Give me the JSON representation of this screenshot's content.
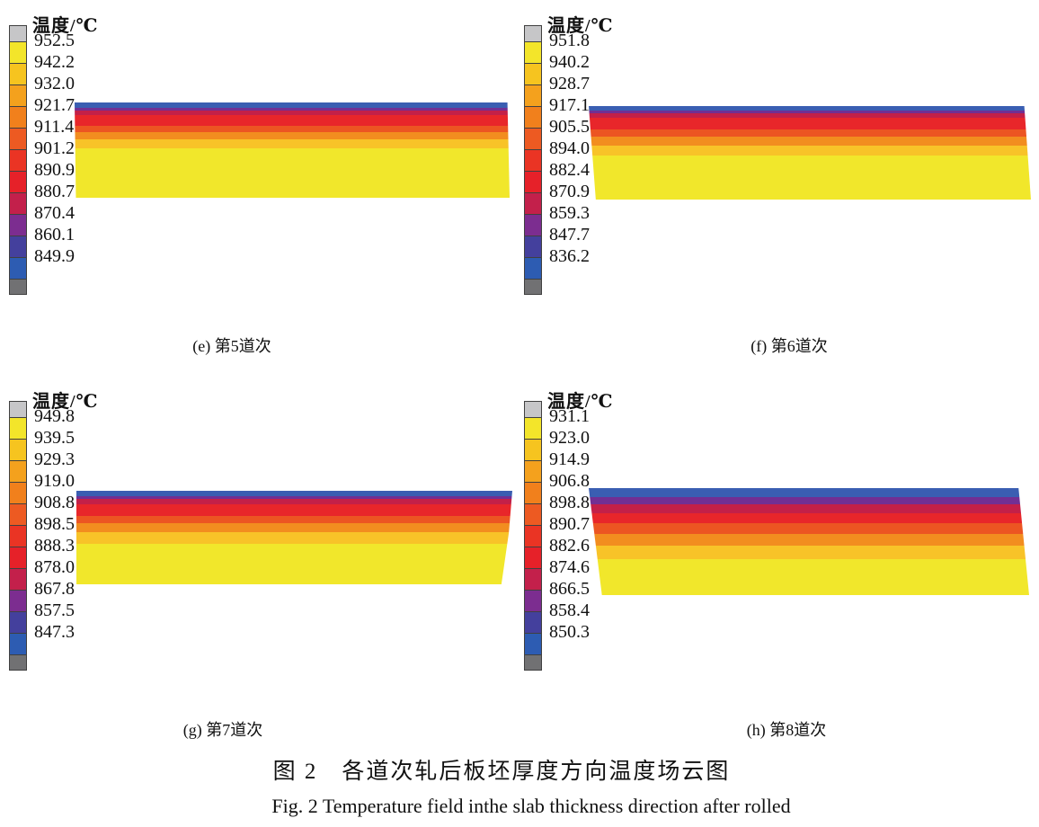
{
  "figure": {
    "caption_zh": "图 2　各道次轧后板坯厚度方向温度场云图",
    "caption_en": "Fig. 2   Temperature field inthe slab thickness direction after rolled"
  },
  "legend_title": "温度/℃",
  "colors": {
    "cap_top": "#c6c6c8",
    "cap_bottom": "#717173",
    "scale": [
      "#f3e52a",
      "#f6c41f",
      "#f4a11d",
      "#f1801c",
      "#ed5a22",
      "#ea3424",
      "#e62129",
      "#c3204b",
      "#7c2d90",
      "#44409d",
      "#2d5cb2"
    ],
    "band_colors": [
      "#3a5eb2",
      "#722f93",
      "#c32048",
      "#e8262a",
      "#ec5522",
      "#f28d1f",
      "#f8c328",
      "#f1e72b"
    ]
  },
  "panels": [
    {
      "id": "e",
      "label": "(e) 第5道次",
      "legend_values": [
        "952.5",
        "942.2",
        "932.0",
        "921.7",
        "911.4",
        "901.2",
        "890.9",
        "880.7",
        "870.4",
        "860.1",
        "849.9"
      ],
      "band_pcts": [
        5.5,
        3.0,
        4.5,
        11.5,
        6.5,
        8.0,
        9.5,
        51.5
      ]
    },
    {
      "id": "f",
      "label": "(f) 第6道次",
      "legend_values": [
        "951.8",
        "940.2",
        "928.7",
        "917.1",
        "905.5",
        "894.0",
        "882.4",
        "870.9",
        "859.3",
        "847.7",
        "836.2"
      ],
      "band_pcts": [
        5.0,
        3.0,
        5.0,
        12.5,
        7.5,
        9.0,
        11.0,
        47.0
      ]
    },
    {
      "id": "g",
      "label": "(g) 第7道次",
      "legend_values": [
        "949.8",
        "939.5",
        "929.3",
        "919.0",
        "908.8",
        "898.5",
        "888.3",
        "878.0",
        "867.8",
        "857.5",
        "847.3"
      ],
      "band_pcts": [
        5.5,
        3.5,
        5.5,
        12.0,
        8.5,
        9.5,
        12.0,
        43.5
      ]
    },
    {
      "id": "h",
      "label": "(h) 第8道次",
      "legend_values": [
        "931.1",
        "923.0",
        "914.9",
        "906.8",
        "898.8",
        "890.7",
        "882.6",
        "874.6",
        "866.5",
        "858.4",
        "850.3"
      ],
      "band_pcts": [
        8.0,
        7.0,
        8.5,
        9.5,
        10.0,
        11.0,
        12.5,
        33.5
      ]
    }
  ],
  "chart_data": [
    {
      "type": "heatmap",
      "title": "(e) 第5道次",
      "legend_title": "温度/℃",
      "contour_levels_C": [
        952.5,
        942.2,
        932.0,
        921.7,
        911.4,
        901.2,
        890.9,
        880.7,
        870.4,
        860.1,
        849.9
      ],
      "legend_position": "left",
      "bands_top_to_bottom": [
        {
          "color": "blue",
          "thickness_pct": 5.5
        },
        {
          "color": "purple",
          "thickness_pct": 3.0
        },
        {
          "color": "crimson",
          "thickness_pct": 4.5
        },
        {
          "color": "red",
          "thickness_pct": 11.5
        },
        {
          "color": "orange-red",
          "thickness_pct": 6.5
        },
        {
          "color": "orange",
          "thickness_pct": 8.0
        },
        {
          "color": "amber",
          "thickness_pct": 9.5
        },
        {
          "color": "yellow",
          "thickness_pct": 51.5
        }
      ],
      "annotation": "Slab thickness-direction temperature field after pass 5; surface coolest (blue, ~850 C), core hottest (yellow, ~952 C)"
    },
    {
      "type": "heatmap",
      "title": "(f) 第6道次",
      "legend_title": "温度/℃",
      "contour_levels_C": [
        951.8,
        940.2,
        928.7,
        917.1,
        905.5,
        894.0,
        882.4,
        870.9,
        859.3,
        847.7,
        836.2
      ],
      "legend_position": "left",
      "bands_top_to_bottom": [
        {
          "color": "blue",
          "thickness_pct": 5.0
        },
        {
          "color": "purple",
          "thickness_pct": 3.0
        },
        {
          "color": "crimson",
          "thickness_pct": 5.0
        },
        {
          "color": "red",
          "thickness_pct": 12.5
        },
        {
          "color": "orange-red",
          "thickness_pct": 7.5
        },
        {
          "color": "orange",
          "thickness_pct": 9.0
        },
        {
          "color": "amber",
          "thickness_pct": 11.0
        },
        {
          "color": "yellow",
          "thickness_pct": 47.0
        }
      ],
      "annotation": "Slab thickness-direction temperature field after pass 6; surface coolest (blue, ~836 C), core hottest (yellow, ~952 C)"
    },
    {
      "type": "heatmap",
      "title": "(g) 第7道次",
      "legend_title": "温度/℃",
      "contour_levels_C": [
        949.8,
        939.5,
        929.3,
        919.0,
        908.8,
        898.5,
        888.3,
        878.0,
        867.8,
        857.5,
        847.3
      ],
      "legend_position": "left",
      "bands_top_to_bottom": [
        {
          "color": "blue",
          "thickness_pct": 5.5
        },
        {
          "color": "purple",
          "thickness_pct": 3.5
        },
        {
          "color": "crimson",
          "thickness_pct": 5.5
        },
        {
          "color": "red",
          "thickness_pct": 12.0
        },
        {
          "color": "orange-red",
          "thickness_pct": 8.5
        },
        {
          "color": "orange",
          "thickness_pct": 9.5
        },
        {
          "color": "amber",
          "thickness_pct": 12.0
        },
        {
          "color": "yellow",
          "thickness_pct": 43.5
        }
      ],
      "annotation": "Slab thickness-direction temperature field after pass 7; surface coolest (blue, ~847 C), core hottest (yellow, ~950 C)"
    },
    {
      "type": "heatmap",
      "title": "(h) 第8道次",
      "legend_title": "温度/℃",
      "contour_levels_C": [
        931.1,
        923.0,
        914.9,
        906.8,
        898.8,
        890.7,
        882.6,
        874.6,
        866.5,
        858.4,
        850.3
      ],
      "legend_position": "left",
      "bands_top_to_bottom": [
        {
          "color": "blue",
          "thickness_pct": 8.0
        },
        {
          "color": "purple",
          "thickness_pct": 7.0
        },
        {
          "color": "crimson",
          "thickness_pct": 8.5
        },
        {
          "color": "red",
          "thickness_pct": 9.5
        },
        {
          "color": "orange-red",
          "thickness_pct": 10.0
        },
        {
          "color": "orange",
          "thickness_pct": 11.0
        },
        {
          "color": "amber",
          "thickness_pct": 12.5
        },
        {
          "color": "yellow",
          "thickness_pct": 33.5
        }
      ],
      "annotation": "Slab thickness-direction temperature field after pass 8; surface coolest (blue, ~850 C), core hottest (yellow, ~931 C)"
    }
  ]
}
